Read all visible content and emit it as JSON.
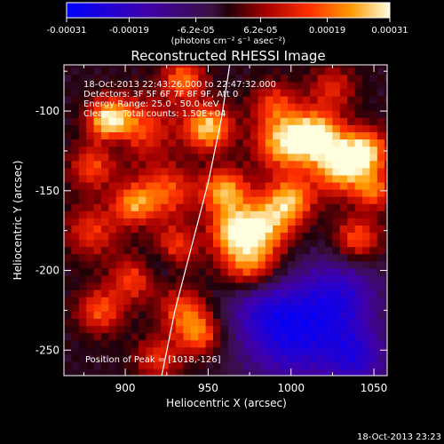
{
  "chart_data": {
    "type": "heatmap",
    "title": "Reconstructed RHESSI Image",
    "xlabel": "Heliocentric X (arcsec)",
    "ylabel": "Heliocentric Y (arcsec)",
    "xlim": [
      863,
      1058
    ],
    "ylim": [
      -266,
      -71
    ],
    "xticks": [
      900,
      950,
      1000,
      1050
    ],
    "yticks": [
      -100,
      -150,
      -200,
      -250
    ],
    "colorbar": {
      "min": -0.00031,
      "max": 0.00031,
      "ticks": [
        "-0.00031",
        "-0.00019",
        "-6.2e-05",
        "6.2e-05",
        "0.00019",
        "0.00031"
      ],
      "unit_label": "(photons cm⁻² s⁻¹ asec⁻²)"
    },
    "annotations": [
      "18-Oct-2013 22:43:26.000 to 22:47:32.000",
      "Detectors: 3F 5F 6F 7F 8F 9F, Att 0",
      "Energy Range: 25.0 - 50.0 keV",
      "Clean     Total counts: 1.50E+04"
    ],
    "peak_label": "Position of Peak = [1018,-126]",
    "limb_curve": [
      [
        922,
        -266
      ],
      [
        930,
        -225
      ],
      [
        940,
        -185
      ],
      [
        950,
        -145
      ],
      [
        958,
        -105
      ],
      [
        963,
        -71
      ]
    ],
    "blobs": [
      {
        "x": 890,
        "y": -105,
        "v": 0.92,
        "r": 9
      },
      {
        "x": 910,
        "y": -110,
        "v": 0.55,
        "r": 14
      },
      {
        "x": 880,
        "y": -135,
        "v": 0.55,
        "r": 10
      },
      {
        "x": 905,
        "y": -158,
        "v": 0.7,
        "r": 9
      },
      {
        "x": 880,
        "y": -175,
        "v": 0.5,
        "r": 12
      },
      {
        "x": 925,
        "y": -150,
        "v": 0.6,
        "r": 12
      },
      {
        "x": 930,
        "y": -185,
        "v": 0.55,
        "r": 10
      },
      {
        "x": 905,
        "y": -205,
        "v": 0.55,
        "r": 10
      },
      {
        "x": 885,
        "y": -225,
        "v": 0.6,
        "r": 10
      },
      {
        "x": 935,
        "y": -225,
        "v": 0.6,
        "r": 10
      },
      {
        "x": 920,
        "y": -255,
        "v": 0.5,
        "r": 10
      },
      {
        "x": 945,
        "y": -240,
        "v": 0.65,
        "r": 9
      },
      {
        "x": 950,
        "y": -110,
        "v": 0.95,
        "r": 10
      },
      {
        "x": 935,
        "y": -80,
        "v": 0.7,
        "r": 9
      },
      {
        "x": 960,
        "y": -150,
        "v": 0.85,
        "r": 10
      },
      {
        "x": 965,
        "y": -175,
        "v": 0.8,
        "r": 10
      },
      {
        "x": 975,
        "y": -195,
        "v": 0.8,
        "r": 12
      },
      {
        "x": 985,
        "y": -170,
        "v": 0.8,
        "r": 12
      },
      {
        "x": 995,
        "y": -120,
        "v": 0.85,
        "r": 12
      },
      {
        "x": 1015,
        "y": -115,
        "v": 1.0,
        "r": 11
      },
      {
        "x": 1030,
        "y": -135,
        "v": 0.9,
        "r": 12
      },
      {
        "x": 1045,
        "y": -125,
        "v": 0.85,
        "r": 10
      },
      {
        "x": 1040,
        "y": -180,
        "v": 0.65,
        "r": 10
      },
      {
        "x": 1050,
        "y": -150,
        "v": 0.6,
        "r": 8
      },
      {
        "x": 1000,
        "y": -155,
        "v": 0.75,
        "r": 10
      },
      {
        "x": 990,
        "y": -95,
        "v": 0.5,
        "r": 10
      },
      {
        "x": 1025,
        "y": -85,
        "v": 0.45,
        "r": 10
      }
    ],
    "dark_blobs": [
      {
        "x": 1000,
        "y": -240,
        "v": -0.75,
        "r": 22
      },
      {
        "x": 1030,
        "y": -215,
        "v": -0.55,
        "r": 18
      },
      {
        "x": 1040,
        "y": -255,
        "v": -0.55,
        "r": 14
      },
      {
        "x": 980,
        "y": -220,
        "v": -0.3,
        "r": 14
      },
      {
        "x": 920,
        "y": -195,
        "v": -0.3,
        "r": 8
      },
      {
        "x": 895,
        "y": -120,
        "v": -0.25,
        "r": 6
      }
    ]
  },
  "footer": {
    "timestamp": "18-Oct-2013 23:23"
  }
}
